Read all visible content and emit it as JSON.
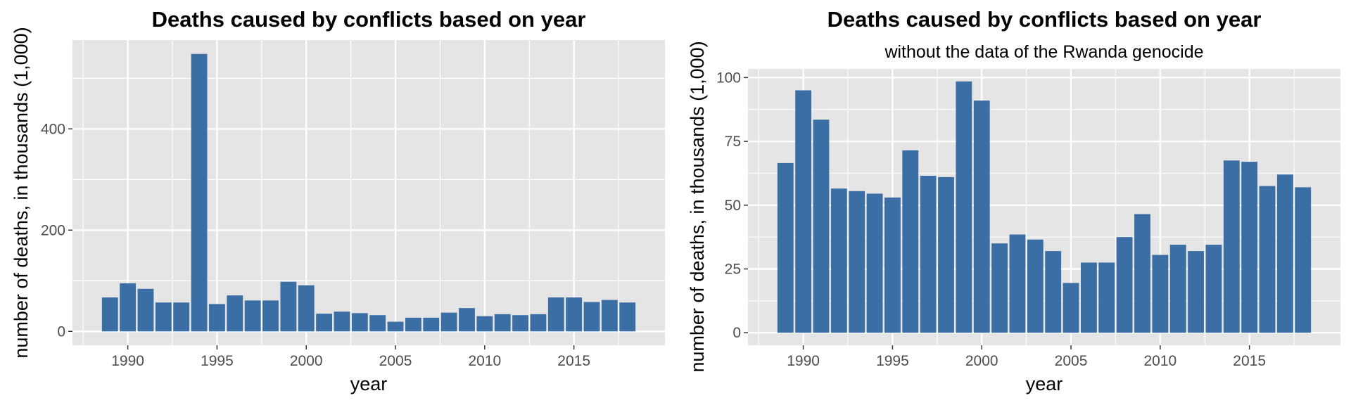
{
  "chart_data": [
    {
      "type": "bar",
      "title": "Deaths caused by conflicts based on year",
      "subtitle": "",
      "xlabel": "year",
      "ylabel": "number of deaths, in thousands (1,000)",
      "x": [
        1989,
        1990,
        1991,
        1992,
        1993,
        1994,
        1995,
        1996,
        1997,
        1998,
        1999,
        2000,
        2001,
        2002,
        2003,
        2004,
        2005,
        2006,
        2007,
        2008,
        2009,
        2010,
        2011,
        2012,
        2013,
        2014,
        2015,
        2016,
        2017,
        2018
      ],
      "values": [
        67,
        95,
        84,
        57,
        57,
        548,
        54,
        71,
        61,
        61,
        98,
        91,
        35,
        39,
        36,
        32,
        19,
        27,
        27,
        37,
        46,
        30,
        34,
        32,
        34,
        67,
        67,
        58,
        62,
        57
      ],
      "xlim": [
        1986.9,
        1988.95
      ],
      "xticks": [
        1990,
        1995,
        2000,
        2005,
        2010,
        2015
      ],
      "xtick_labels": [
        "1990",
        "1995",
        "2000",
        "2005",
        "2010",
        "2015"
      ],
      "ylim": [
        -27.4,
        575.4
      ],
      "yticks": [
        0,
        200,
        400
      ],
      "ytick_labels": [
        "0",
        "200",
        "400"
      ],
      "bar_color": "#3a6ea5",
      "panel_background": "#e5e5e5",
      "grid": true,
      "legend": "none"
    },
    {
      "type": "bar",
      "title": "Deaths caused by conflicts based on year",
      "subtitle": "without the data of the Rwanda genocide",
      "xlabel": "year",
      "ylabel": "number of deaths, in thousands (1,000)",
      "x": [
        1989,
        1990,
        1991,
        1992,
        1993,
        1994,
        1995,
        1996,
        1997,
        1998,
        1999,
        2000,
        2001,
        2002,
        2003,
        2004,
        2005,
        2006,
        2007,
        2008,
        2009,
        2010,
        2011,
        2012,
        2013,
        2014,
        2015,
        2016,
        2017,
        2018
      ],
      "values": [
        66.5,
        95,
        83.5,
        56.5,
        55.5,
        54.5,
        53,
        71.5,
        61.5,
        61,
        98.5,
        91,
        35,
        38.5,
        36.5,
        32,
        19.5,
        27.5,
        27.5,
        37.5,
        46.5,
        30.5,
        34.5,
        32,
        34.5,
        67.5,
        67,
        57.5,
        62,
        57
      ],
      "xlim": [
        1986.9,
        2020.1
      ],
      "xticks": [
        1990,
        1995,
        2000,
        2005,
        2010,
        2015
      ],
      "xtick_labels": [
        "1990",
        "1995",
        "2000",
        "2005",
        "2010",
        "2015"
      ],
      "ylim": [
        -4.9,
        103.4
      ],
      "yticks": [
        0,
        25,
        50,
        75,
        100
      ],
      "ytick_labels": [
        "0",
        "25",
        "50",
        "75",
        "100"
      ],
      "bar_color": "#3a6ea5",
      "panel_background": "#e5e5e5",
      "grid": true,
      "legend": "none"
    }
  ]
}
